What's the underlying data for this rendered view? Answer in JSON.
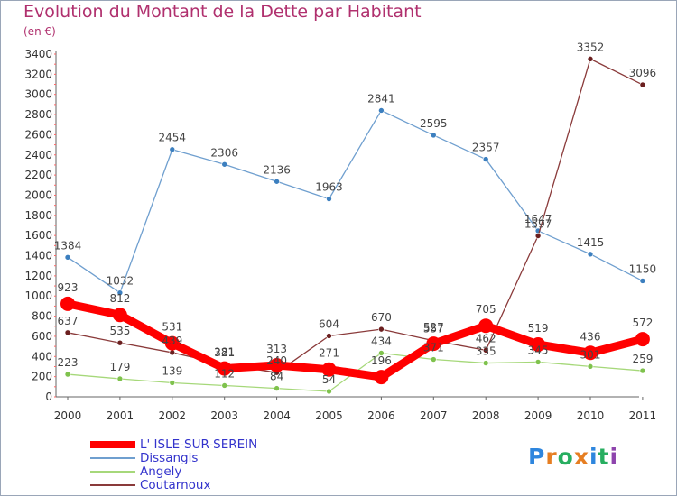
{
  "header": {
    "title": "Evolution du Montant de la Dette par Habitant",
    "unit": "(en €)"
  },
  "logo": {
    "text": "Proxiti",
    "colors": [
      "#2e86de",
      "#e67e22",
      "#27ae60",
      "#e67e22",
      "#2e86de",
      "#27ae60",
      "#8e44ad"
    ]
  },
  "chart_data": {
    "type": "line",
    "title": "Evolution du Montant de la Dette par Habitant",
    "ylabel": "(en €)",
    "xlabel": "",
    "categories": [
      "2000",
      "2001",
      "2002",
      "2003",
      "2004",
      "2005",
      "2006",
      "2007",
      "2008",
      "2009",
      "2010",
      "2011"
    ],
    "ylim": [
      0,
      3400
    ],
    "yticks": [
      "0",
      "200",
      "400",
      "600",
      "800",
      "1000",
      "1200",
      "1400",
      "1600",
      "1800",
      "2000",
      "2200",
      "2400",
      "2600",
      "2800",
      "3000",
      "3200",
      "3400"
    ],
    "grid": false,
    "legend_position": "bottom-left",
    "series": [
      {
        "name": "Dissangis",
        "color": "#6f9fcf",
        "marker": "#3c7fbf",
        "values": [
          1384,
          1032,
          2454,
          2306,
          2136,
          1963,
          2841,
          2595,
          2357,
          1647,
          1415,
          1150
        ]
      },
      {
        "name": "Angely",
        "color": "#a6d87a",
        "marker": "#7fc24d",
        "values": [
          223,
          179,
          139,
          112,
          84,
          54,
          434,
          371,
          335,
          345,
          301,
          259
        ]
      },
      {
        "name": "Coutarnoux",
        "color": "#8a3a3a",
        "marker": "#6b1f1f",
        "values": [
          637,
          535,
          439,
          321,
          240,
          604,
          670,
          557,
          462,
          1597,
          3352,
          3096
        ]
      },
      {
        "name": "L' ISLE-SUR-SEREIN",
        "color": "#ff0000",
        "marker": "#ff0000",
        "values": [
          923,
          812,
          531,
          281,
          313,
          271,
          196,
          527,
          705,
          519,
          436,
          572
        ]
      }
    ]
  }
}
